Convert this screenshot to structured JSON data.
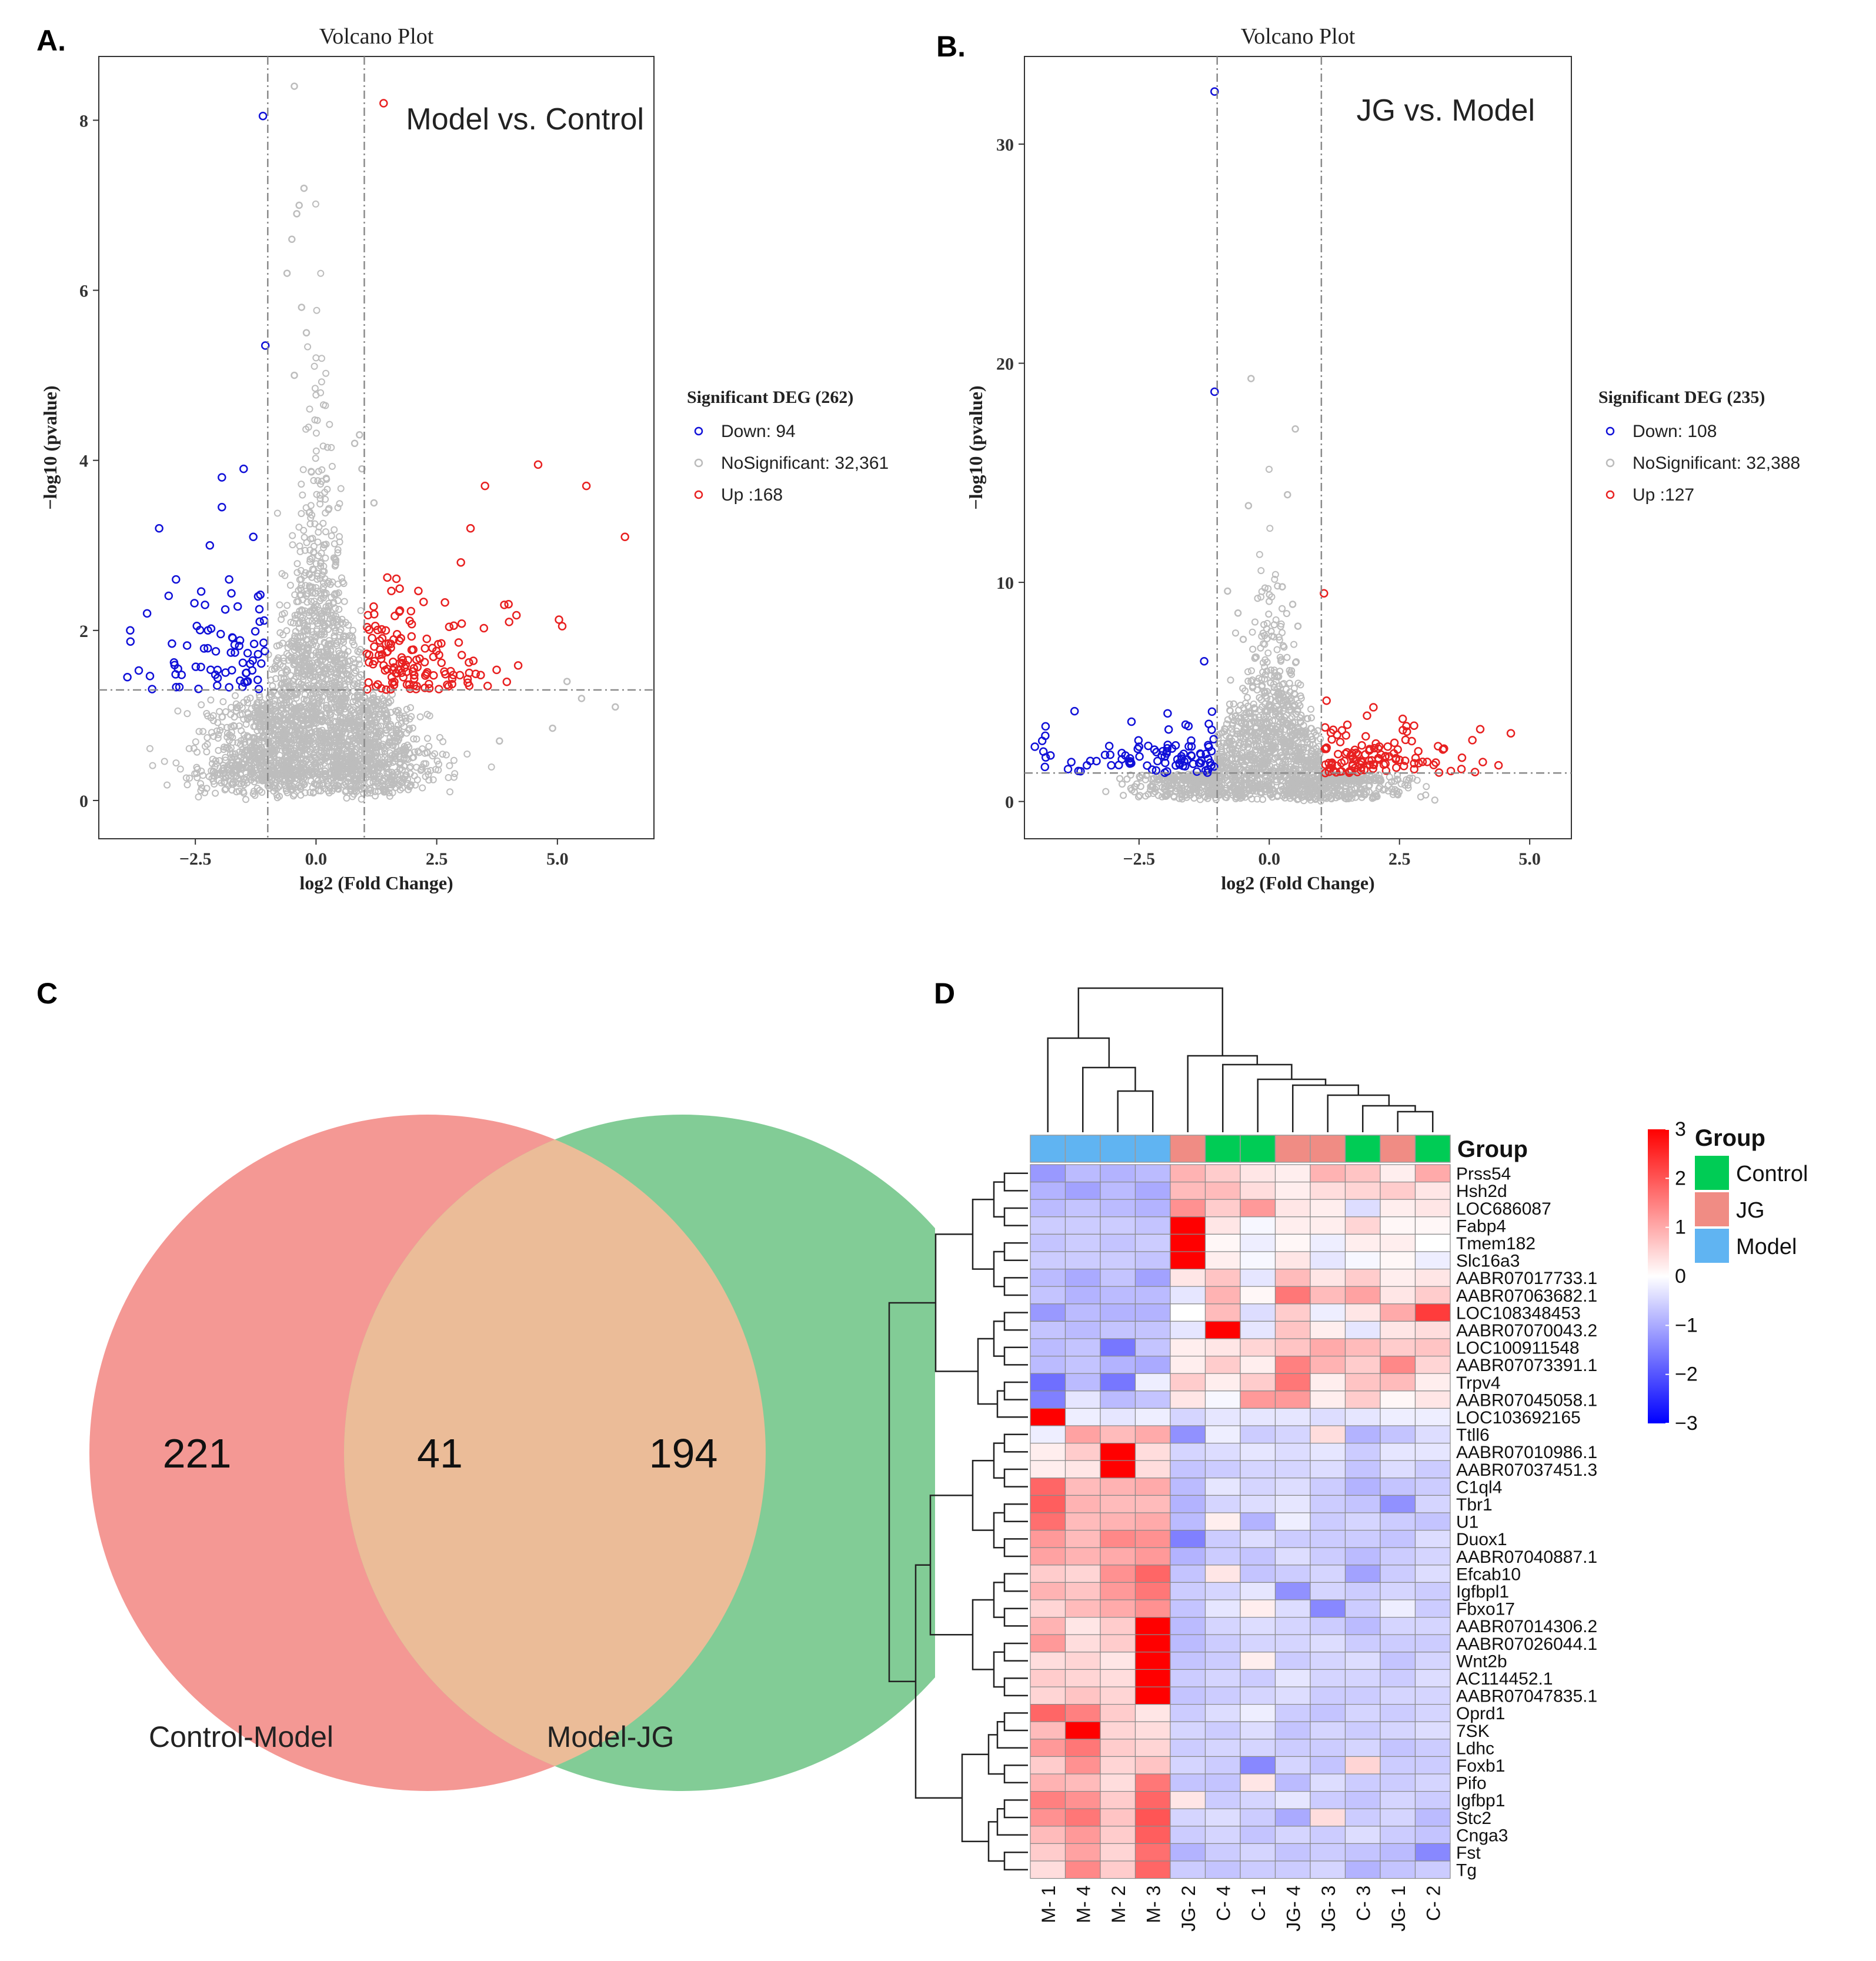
{
  "panels": {
    "a": {
      "label": "A."
    },
    "b": {
      "label": "B."
    },
    "c": {
      "label": "C"
    },
    "d": {
      "label": "D"
    }
  },
  "chart_data": [
    {
      "type": "scatter",
      "id": "volcanoA",
      "title": "Volcano Plot",
      "annotation": "Model vs. Control",
      "xlabel": "log2 (Fold Change)",
      "ylabel": "−log10 (pvalue)",
      "xlim": [
        -4.5,
        7.0
      ],
      "ylim": [
        -0.45,
        8.75
      ],
      "xticks": [
        -2.5,
        0.0,
        2.5,
        5.0
      ],
      "xtick_labels": [
        "−2.5",
        "0.0",
        "2.5",
        "5.0"
      ],
      "yticks": [
        0,
        2,
        4,
        6,
        8
      ],
      "ytick_labels": [
        "0",
        "2",
        "4",
        "6",
        "8"
      ],
      "fc_threshold": [
        -1,
        1
      ],
      "p_threshold": 1.3,
      "legend": {
        "title": "Significant DEG (262)",
        "entries": [
          {
            "label": "Down: 94",
            "color": "#1010d8"
          },
          {
            "label": "NoSignificant: 32,361",
            "color": "#bbbbbb"
          },
          {
            "label": "Up :168",
            "color": "#e82020"
          }
        ]
      },
      "colors": {
        "down": "#1010d8",
        "ns": "#bdbdbd",
        "up": "#e82020"
      },
      "highlight_points": {
        "ns": [
          [
            -0.45,
            8.4
          ],
          [
            -0.25,
            7.2
          ],
          [
            -0.35,
            7.0
          ],
          [
            -0.5,
            6.6
          ],
          [
            -0.4,
            6.9
          ],
          [
            -0.6,
            6.2
          ],
          [
            0.9,
            4.3
          ],
          [
            0.8,
            4.2
          ],
          [
            0.95,
            3.9
          ],
          [
            1.2,
            3.5
          ],
          [
            5.2,
            1.4
          ],
          [
            5.5,
            1.2
          ],
          [
            6.2,
            1.1
          ],
          [
            4.9,
            0.85
          ],
          [
            3.8,
            0.7
          ],
          [
            -0.3,
            5.8
          ],
          [
            -0.2,
            5.5
          ],
          [
            -0.45,
            5.0
          ]
        ],
        "down": [
          [
            -1.1,
            8.05
          ],
          [
            -1.05,
            5.35
          ],
          [
            -1.5,
            3.9
          ],
          [
            -1.95,
            3.8
          ],
          [
            -3.25,
            3.2
          ],
          [
            -1.3,
            3.1
          ],
          [
            -1.95,
            3.45
          ],
          [
            -2.2,
            3.0
          ],
          [
            -2.9,
            2.6
          ],
          [
            -1.2,
            2.4
          ],
          [
            -3.5,
            2.2
          ],
          [
            -2.3,
            2.3
          ],
          [
            -3.85,
            2.0
          ],
          [
            -1.8,
            2.6
          ]
        ],
        "up": [
          [
            1.4,
            8.2
          ],
          [
            4.6,
            3.95
          ],
          [
            5.6,
            3.7
          ],
          [
            3.5,
            3.7
          ],
          [
            6.4,
            3.1
          ],
          [
            3.2,
            3.2
          ],
          [
            3.0,
            2.8
          ],
          [
            5.1,
            2.05
          ],
          [
            4.0,
            2.1
          ],
          [
            3.9,
            2.3
          ]
        ]
      }
    },
    {
      "type": "scatter",
      "id": "volcanoB",
      "title": "Volcano Plot",
      "annotation": "JG vs. Model",
      "xlabel": "log2 (Fold Change)",
      "ylabel": "−log10 (pvalue)",
      "xlim": [
        -4.7,
        5.8
      ],
      "ylim": [
        -1.7,
        34.0
      ],
      "xticks": [
        -2.5,
        0.0,
        2.5,
        5.0
      ],
      "xtick_labels": [
        "−2.5",
        "0.0",
        "2.5",
        "5.0"
      ],
      "yticks": [
        0,
        10,
        20,
        30
      ],
      "ytick_labels": [
        "0",
        "10",
        "20",
        "30"
      ],
      "fc_threshold": [
        -1,
        1
      ],
      "p_threshold": 1.3,
      "legend": {
        "title": "Significant DEG (235)",
        "entries": [
          {
            "label": "Down: 108",
            "color": "#1010d8"
          },
          {
            "label": "NoSignificant: 32,388",
            "color": "#bbbbbb"
          },
          {
            "label": "Up :127",
            "color": "#e82020"
          }
        ]
      },
      "colors": {
        "down": "#1010d8",
        "ns": "#bdbdbd",
        "up": "#e82020"
      },
      "highlight_points": {
        "down": [
          [
            -1.05,
            32.4
          ],
          [
            -1.05,
            18.7
          ],
          [
            -1.25,
            6.4
          ],
          [
            -1.1,
            4.1
          ],
          [
            -4.3,
            3.0
          ],
          [
            -4.5,
            2.5
          ],
          [
            -4.2,
            2.1
          ],
          [
            -3.8,
            1.8
          ],
          [
            -2.5,
            2.5
          ],
          [
            -1.5,
            2.1
          ]
        ],
        "ns": [
          [
            -0.35,
            19.3
          ],
          [
            -0.4,
            13.5
          ],
          [
            0.5,
            17.0
          ],
          [
            0.35,
            14.0
          ],
          [
            0.25,
            9.8
          ],
          [
            0.45,
            9.0
          ],
          [
            0.55,
            8.0
          ],
          [
            -0.8,
            9.6
          ],
          [
            -0.6,
            8.6
          ],
          [
            -0.5,
            7.4
          ]
        ],
        "up": [
          [
            1.05,
            9.5
          ],
          [
            1.1,
            4.6
          ],
          [
            2.0,
            4.3
          ],
          [
            1.5,
            3.5
          ],
          [
            4.05,
            3.3
          ],
          [
            3.9,
            2.8
          ],
          [
            3.7,
            2.0
          ],
          [
            4.1,
            1.8
          ],
          [
            2.5,
            1.9
          ]
        ]
      }
    },
    {
      "type": "venn",
      "id": "vennC",
      "sets": [
        "Control-Model",
        "Model-JG"
      ],
      "values": {
        "left_only": "221",
        "overlap": "41",
        "right_only": "194"
      },
      "colors": {
        "left": "#f49894",
        "right": "#82cc96",
        "overlap": "#ebbc98"
      }
    },
    {
      "type": "heatmap",
      "id": "heatmapD",
      "columns": [
        "M- 1",
        "M- 4",
        "M- 2",
        "M- 3",
        "JG- 2",
        "C- 4",
        "C- 1",
        "JG- 4",
        "JG- 3",
        "C- 3",
        "JG- 1",
        "C- 2"
      ],
      "column_groups": [
        "Model",
        "Model",
        "Model",
        "Model",
        "JG",
        "Control",
        "Control",
        "JG",
        "JG",
        "Control",
        "JG",
        "Control"
      ],
      "group_colors": {
        "Control": "#00cc55",
        "JG": "#f08c84",
        "Model": "#60b4f2"
      },
      "annotation_label": "Group",
      "legend_title": "Group",
      "legend_entries": [
        "Control",
        "JG",
        "Model"
      ],
      "scale": {
        "min": -3,
        "max": 3,
        "ticks": [
          3,
          2,
          1,
          0,
          -1,
          -2,
          -3
        ],
        "tick_labels": [
          "3",
          "2",
          "1",
          "0",
          "−1",
          "−2",
          "−3"
        ]
      },
      "rows": [
        "Prss54",
        "Hsh2d",
        "LOC686087",
        "Fabp4",
        "Tmem182",
        "Slc16a3",
        "AABR07017733.1",
        "AABR07063682.1",
        "LOC108348453",
        "AABR07070043.2",
        "LOC100911548",
        "AABR07073391.1",
        "Trpv4",
        "AABR07045058.1",
        "LOC103692165",
        "Ttll6",
        "AABR07010986.1",
        "AABR07037451.3",
        "C1ql4",
        "Tbr1",
        "U1",
        "Duox1",
        "AABR07040887.1",
        "Efcab10",
        "Igfbpl1",
        "Fbxo17",
        "AABR07014306.2",
        "AABR07026044.1",
        "Wnt2b",
        "AC114452.1",
        "AABR07047835.1",
        "Oprd1",
        "7SK",
        "Ldhc",
        "Foxb1",
        "Pifo",
        "Igfbp1",
        "Stc2",
        "Cnga3",
        "Fst",
        "Tg"
      ],
      "values": [
        [
          -1.2,
          -0.8,
          -0.9,
          -0.8,
          0.9,
          0.6,
          0.3,
          0.2,
          0.9,
          0.7,
          0.2,
          1.0
        ],
        [
          -0.9,
          -1.1,
          -0.8,
          -1.0,
          0.8,
          0.8,
          0.4,
          0.2,
          0.4,
          0.5,
          0.6,
          0.3
        ],
        [
          -0.8,
          -0.7,
          -0.8,
          -0.9,
          1.3,
          0.6,
          1.2,
          0.3,
          0.2,
          -0.4,
          0.2,
          0.3
        ],
        [
          -0.6,
          -0.6,
          -0.6,
          -0.7,
          3.0,
          0.3,
          -0.1,
          0.2,
          0.2,
          0.5,
          0.1,
          0.1
        ],
        [
          -0.7,
          -0.6,
          -0.7,
          -0.6,
          3.0,
          0.1,
          -0.2,
          0.1,
          -0.2,
          0.2,
          0.2,
          0.0
        ],
        [
          -0.6,
          -0.6,
          -0.6,
          -0.7,
          3.0,
          0.2,
          -0.1,
          0.3,
          -0.3,
          -0.1,
          0.1,
          -0.2
        ],
        [
          -0.8,
          -1.0,
          -0.7,
          -1.1,
          0.3,
          0.7,
          -0.3,
          0.8,
          0.3,
          0.6,
          0.2,
          0.3
        ],
        [
          -0.7,
          -0.9,
          -0.8,
          -0.8,
          -0.3,
          0.9,
          0.1,
          1.6,
          0.8,
          1.1,
          0.3,
          0.6
        ],
        [
          -1.2,
          -0.8,
          -0.9,
          -0.9,
          0.0,
          0.8,
          -0.4,
          0.6,
          -0.2,
          0.3,
          1.0,
          2.3
        ],
        [
          -0.7,
          -0.8,
          -0.7,
          -0.7,
          -0.3,
          3.0,
          -0.3,
          0.7,
          0.2,
          -0.3,
          0.3,
          0.4
        ],
        [
          -0.8,
          -0.7,
          -1.6,
          -0.7,
          0.2,
          0.3,
          0.5,
          0.7,
          1.0,
          0.8,
          0.6,
          0.7
        ],
        [
          -0.8,
          -0.7,
          -0.9,
          -1.0,
          0.2,
          0.6,
          0.2,
          1.5,
          0.9,
          0.6,
          1.4,
          0.5
        ],
        [
          -1.7,
          -0.8,
          -1.6,
          -0.2,
          0.6,
          0.2,
          0.6,
          1.6,
          0.2,
          0.7,
          0.8,
          0.2
        ],
        [
          -1.5,
          -0.3,
          -0.8,
          -0.7,
          0.3,
          -0.1,
          1.2,
          1.2,
          0.2,
          0.6,
          0.1,
          0.3
        ],
        [
          3.0,
          -0.2,
          -0.3,
          -0.2,
          -0.5,
          -0.3,
          -0.3,
          -0.3,
          -0.4,
          -0.3,
          -0.2,
          -0.2
        ],
        [
          -0.2,
          1.1,
          0.8,
          1.0,
          -1.3,
          -0.2,
          -0.6,
          -0.5,
          0.4,
          -0.9,
          -0.7,
          -0.4
        ],
        [
          0.2,
          0.6,
          3.0,
          0.4,
          -0.5,
          -0.4,
          -0.3,
          -0.4,
          -0.3,
          -0.6,
          -0.3,
          -0.3
        ],
        [
          0.2,
          0.3,
          3.0,
          0.4,
          -0.7,
          -0.6,
          -0.5,
          -0.5,
          -0.4,
          -0.7,
          -0.4,
          -0.6
        ],
        [
          1.8,
          0.8,
          0.9,
          1.0,
          -0.8,
          -0.3,
          -0.5,
          -0.4,
          -0.6,
          -0.9,
          -0.7,
          -0.6
        ],
        [
          1.9,
          0.9,
          0.8,
          0.8,
          -0.9,
          -0.5,
          -0.4,
          -0.3,
          -0.6,
          -0.7,
          -1.3,
          -0.5
        ],
        [
          1.7,
          0.8,
          0.9,
          1.0,
          -0.8,
          0.2,
          -0.9,
          -0.2,
          -0.6,
          -0.5,
          -0.6,
          -0.7
        ],
        [
          1.2,
          0.8,
          1.4,
          1.3,
          -1.5,
          -0.6,
          -0.4,
          -0.6,
          -0.6,
          -0.6,
          -0.7,
          -0.4
        ],
        [
          1.1,
          0.9,
          1.0,
          1.2,
          -0.9,
          -0.6,
          -0.7,
          -0.4,
          -0.6,
          -0.8,
          -0.6,
          -0.5
        ],
        [
          0.6,
          0.5,
          1.3,
          1.8,
          -0.7,
          0.3,
          -0.7,
          -0.6,
          -0.5,
          -1.1,
          -0.6,
          -0.4
        ],
        [
          0.9,
          0.7,
          1.2,
          1.6,
          -0.6,
          -0.5,
          -0.3,
          -1.3,
          -0.5,
          -0.6,
          -0.5,
          -0.6
        ],
        [
          0.5,
          0.8,
          1.0,
          1.3,
          -0.7,
          -0.3,
          0.2,
          -0.4,
          -1.4,
          -0.6,
          -0.2,
          -0.6
        ],
        [
          0.9,
          0.3,
          0.6,
          3.0,
          -0.8,
          -0.5,
          -0.4,
          -0.5,
          -0.6,
          -0.8,
          -0.5,
          -0.5
        ],
        [
          1.2,
          0.4,
          0.6,
          3.0,
          -0.8,
          -0.6,
          -0.5,
          -0.5,
          -0.4,
          -0.6,
          -0.6,
          -0.6
        ],
        [
          0.4,
          0.5,
          0.3,
          3.0,
          -0.7,
          -0.6,
          0.2,
          -0.6,
          -0.5,
          -0.4,
          -0.7,
          -0.5
        ],
        [
          0.6,
          0.5,
          0.4,
          3.0,
          -0.6,
          -0.5,
          -0.6,
          -0.3,
          -0.5,
          -0.5,
          -0.6,
          -0.4
        ],
        [
          0.5,
          0.7,
          0.5,
          3.0,
          -0.7,
          -0.6,
          -0.5,
          -0.4,
          -0.6,
          -0.6,
          -0.5,
          -0.5
        ],
        [
          1.8,
          1.5,
          0.6,
          0.3,
          -0.6,
          -0.4,
          -0.2,
          -0.6,
          -0.7,
          -0.5,
          -0.6,
          -0.5
        ],
        [
          0.8,
          3.0,
          0.5,
          0.4,
          -0.5,
          -0.6,
          -0.4,
          -0.7,
          -0.5,
          -0.6,
          -0.5,
          -0.4
        ],
        [
          1.2,
          1.6,
          0.6,
          0.5,
          -0.6,
          -0.5,
          -0.5,
          -0.6,
          -0.6,
          -0.5,
          -0.7,
          -0.6
        ],
        [
          0.6,
          1.3,
          0.5,
          0.7,
          -0.5,
          -0.6,
          -1.4,
          -0.5,
          -0.7,
          0.5,
          -0.6,
          -0.6
        ],
        [
          0.9,
          0.8,
          0.4,
          1.6,
          -0.7,
          -0.7,
          0.3,
          -0.8,
          -0.4,
          -0.6,
          -0.6,
          -0.5
        ],
        [
          1.5,
          1.3,
          0.6,
          1.8,
          0.3,
          -0.6,
          -0.5,
          -0.3,
          -0.6,
          -0.7,
          -0.5,
          -0.6
        ],
        [
          1.3,
          1.6,
          0.7,
          2.0,
          -0.5,
          -0.4,
          -0.6,
          -1.0,
          0.4,
          -0.6,
          -0.5,
          -0.8
        ],
        [
          0.8,
          1.2,
          0.6,
          1.9,
          -0.6,
          -0.5,
          -0.7,
          -0.5,
          -0.6,
          -0.4,
          -0.6,
          -0.7
        ],
        [
          0.6,
          1.1,
          0.5,
          1.7,
          -0.9,
          -0.6,
          -0.5,
          -0.7,
          -0.6,
          -0.7,
          -0.8,
          -1.4
        ],
        [
          0.4,
          1.4,
          0.6,
          1.8,
          -0.6,
          -0.7,
          -0.6,
          -0.6,
          -0.5,
          -0.9,
          -0.7,
          -0.6
        ]
      ]
    }
  ]
}
